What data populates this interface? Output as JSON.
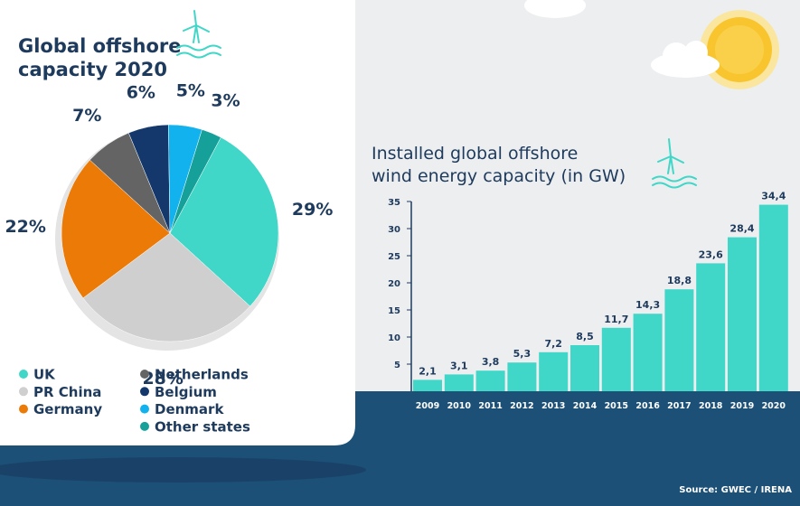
{
  "colors": {
    "bg_light": "#ECEEF0",
    "navy": "#1C5076",
    "navy_dark": "#1A4268",
    "teal": "#40D7C8",
    "text_dark": "#1E3A5C",
    "grey_pie": "#CFCFCF",
    "grey_dark": "#646464",
    "orange": "#EB7A06",
    "belgium": "#14386B",
    "denmark": "#12B2EF",
    "other": "#15A09A",
    "sun": "#F9C52F"
  },
  "icons": [
    "wind-turbine-icon",
    "wind-turbine-icon",
    "sun-icon",
    "cloud-icon",
    "cloud-icon"
  ],
  "source": "Source: GWEC / IRENA",
  "chart_data": [
    {
      "type": "pie",
      "title": "Global offshore capacity 2020",
      "slices": [
        {
          "label": "UK",
          "value": 29,
          "display": "29%",
          "color": "#40D7C8"
        },
        {
          "label": "PR China",
          "value": 28,
          "display": "28%",
          "color": "#CFCFCF"
        },
        {
          "label": "Germany",
          "value": 22,
          "display": "22%",
          "color": "#EB7A06"
        },
        {
          "label": "Netherlands",
          "value": 7,
          "display": "7%",
          "color": "#646464"
        },
        {
          "label": "Belgium",
          "value": 6,
          "display": "6%",
          "color": "#14386B"
        },
        {
          "label": "Denmark",
          "value": 5,
          "display": "5%",
          "color": "#12B2EF"
        },
        {
          "label": "Other states",
          "value": 3,
          "display": "3%",
          "color": "#15A09A"
        }
      ],
      "legend_placement": "bottom"
    },
    {
      "type": "bar",
      "title": "Installed global offshore wind energy capacity (in GW)",
      "categories": [
        "2009",
        "2010",
        "2011",
        "2012",
        "2013",
        "2014",
        "2015",
        "2016",
        "2017",
        "2018",
        "2019",
        "2020"
      ],
      "values": [
        2.1,
        3.1,
        3.8,
        5.3,
        7.2,
        8.5,
        11.7,
        14.3,
        18.8,
        23.6,
        28.4,
        34.4
      ],
      "value_labels": [
        "2,1",
        "3,1",
        "3,8",
        "5,3",
        "7,2",
        "8,5",
        "11,7",
        "14,3",
        "18,8",
        "23,6",
        "28,4",
        "34,4"
      ],
      "yticks": [
        "5",
        "10",
        "15",
        "20",
        "25",
        "30",
        "35"
      ],
      "ylim": [
        0,
        35
      ],
      "grid": false,
      "color": "#40D7C8"
    }
  ]
}
